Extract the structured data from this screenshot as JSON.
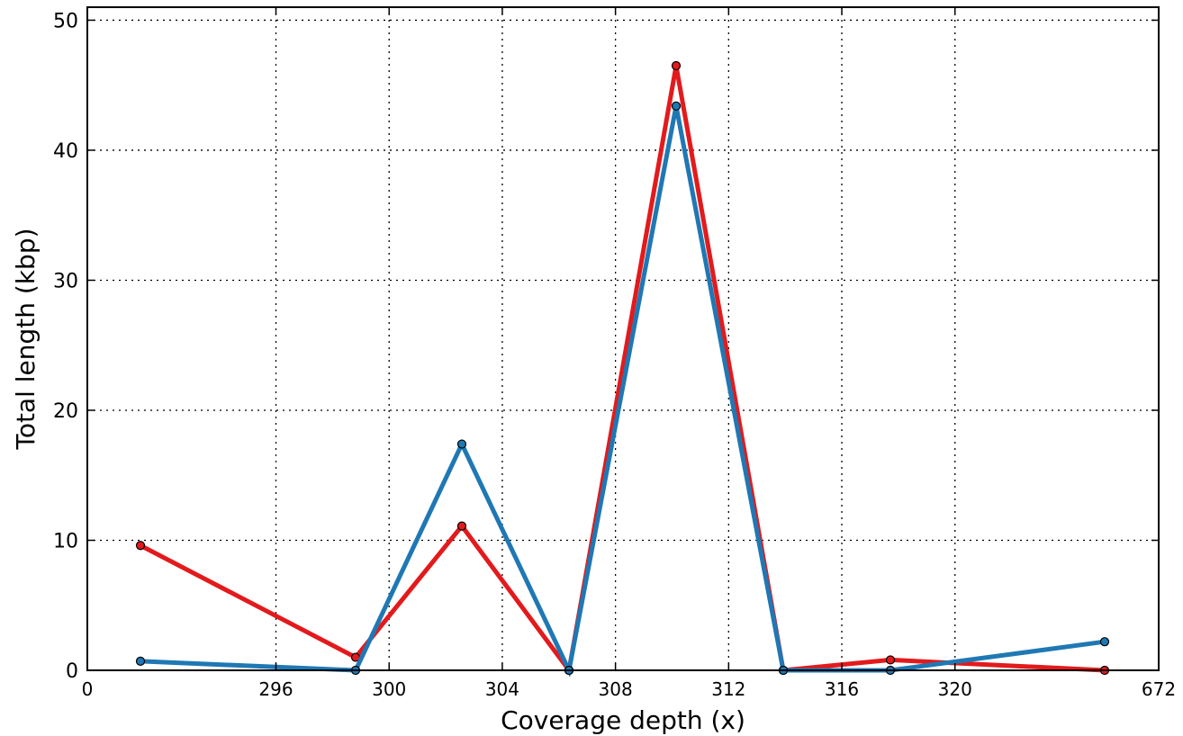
{
  "chart_data": {
    "type": "line",
    "title": "",
    "xlabel": "Coverage depth (x)",
    "ylabel": "Total length (kbp)",
    "x_tick_labels": [
      "0",
      "296",
      "300",
      "304",
      "308",
      "312",
      "316",
      "320",
      "672"
    ],
    "y_ticks": [
      0,
      10,
      20,
      30,
      40,
      50
    ],
    "ylim": [
      0,
      51
    ],
    "grid": true,
    "x": [
      1,
      2,
      3,
      4,
      5,
      6,
      7,
      8
    ],
    "series": [
      {
        "color": "#e31a1c",
        "values": [
          9.6,
          1.0,
          11.1,
          0.0,
          46.5,
          0.0,
          0.8,
          0.0
        ]
      },
      {
        "color": "#1f78b4",
        "values": [
          0.7,
          0.0,
          17.4,
          0.0,
          43.4,
          0.0,
          0.0,
          2.2
        ]
      }
    ]
  }
}
